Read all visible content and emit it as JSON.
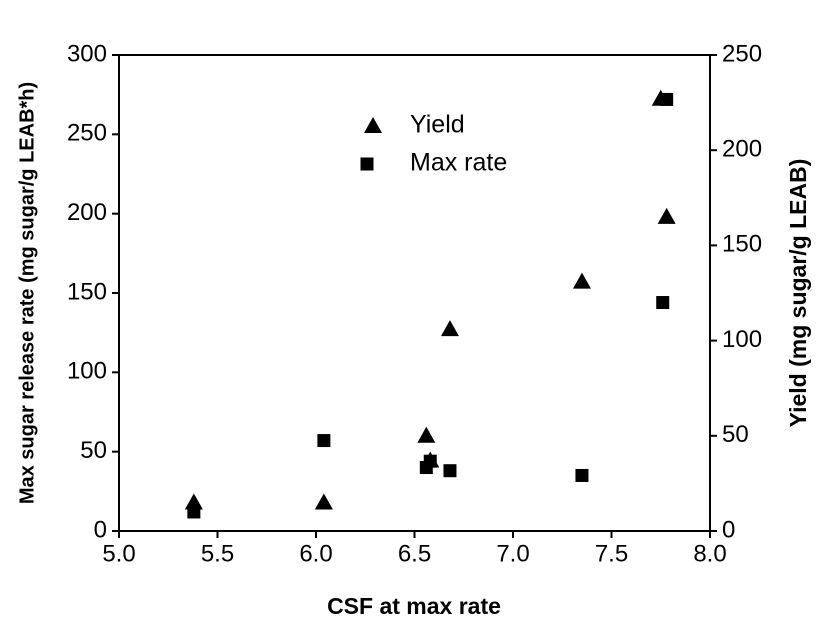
{
  "chart_data": {
    "type": "scatter",
    "x_label": "CSF at max rate",
    "y_label": "Max sugar release rate (mg sugar/g LEAB*h)",
    "y2_label": "Yield (mg sugar/g LEAB)",
    "xlim": [
      5.0,
      8.0
    ],
    "xticks": [
      {
        "value": 5,
        "label": "5.0"
      },
      {
        "value": 5.5,
        "label": "5.5"
      },
      {
        "value": 6,
        "label": "6.0"
      },
      {
        "value": 6.5,
        "label": "6.5"
      },
      {
        "value": 7,
        "label": "7.0"
      },
      {
        "value": 7.5,
        "label": "7.5"
      },
      {
        "value": 8,
        "label": "8.0"
      }
    ],
    "ylim": [
      0,
      300
    ],
    "yticks": [
      0,
      50,
      100,
      150,
      200,
      250,
      300
    ],
    "y2lim": [
      0,
      250
    ],
    "y2ticks": [
      0,
      50,
      100,
      150,
      200,
      250
    ],
    "grid": false,
    "legend": "upper center",
    "series": [
      {
        "name": "Yield",
        "color": "#000000",
        "marker": "triangle",
        "axis": "y2",
        "x": [
          5.38,
          6.04,
          6.56,
          6.58,
          6.68,
          7.35,
          7.75,
          7.78
        ],
        "values": [
          15,
          15,
          50,
          37,
          106,
          131,
          227,
          165
        ]
      },
      {
        "name": "Max rate",
        "color": "#000000",
        "marker": "square",
        "axis": "y",
        "x": [
          5.38,
          6.04,
          6.56,
          6.58,
          6.68,
          7.35,
          7.76,
          7.78
        ],
        "values": [
          12,
          57,
          40,
          44,
          38,
          35,
          144,
          272
        ]
      }
    ]
  }
}
